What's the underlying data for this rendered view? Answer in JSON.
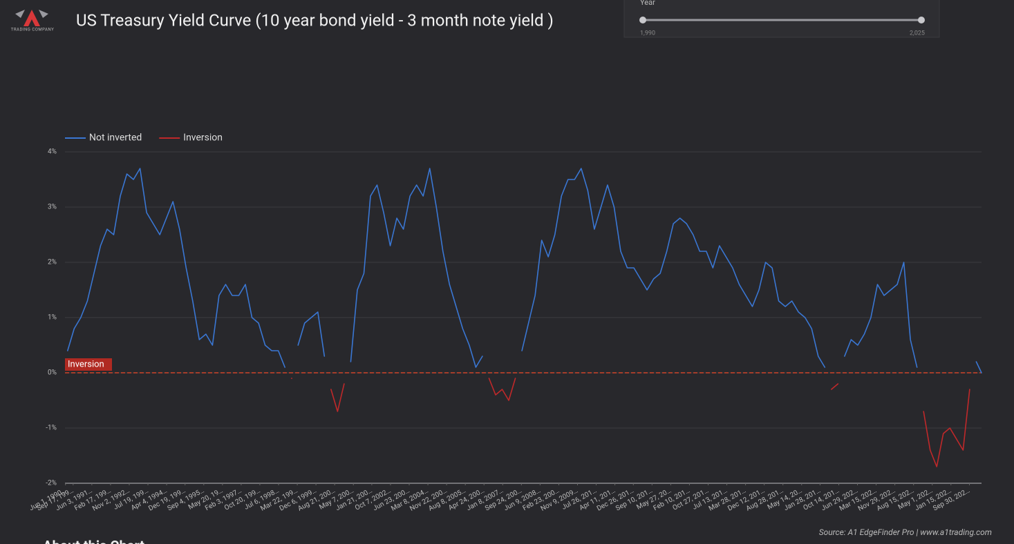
{
  "header": {
    "title": "US Treasury Yield Curve  (10 year bond yield - 3 month note yield )",
    "logo_text": "TRADING COMPANY"
  },
  "controls": {
    "slider": {
      "label": "Year",
      "min_label": "1,990",
      "max_label": "2,025"
    }
  },
  "chart_data": {
    "type": "line",
    "x": [
      1990.5,
      1990.75,
      1991,
      1991.25,
      1991.5,
      1991.75,
      1992,
      1992.25,
      1992.5,
      1992.75,
      1993,
      1993.25,
      1993.5,
      1993.75,
      1994,
      1994.25,
      1994.5,
      1994.75,
      1995,
      1995.25,
      1995.5,
      1995.75,
      1996,
      1996.25,
      1996.5,
      1996.75,
      1997,
      1997.25,
      1997.5,
      1997.75,
      1998,
      1998.25,
      1998.5,
      1998.75,
      1999,
      1999.25,
      1999.5,
      1999.75,
      2000,
      2000.25,
      2000.5,
      2000.75,
      2001,
      2001.25,
      2001.5,
      2001.75,
      2002,
      2002.25,
      2002.5,
      2002.75,
      2003,
      2003.25,
      2003.5,
      2003.75,
      2004,
      2004.25,
      2004.5,
      2004.75,
      2005,
      2005.25,
      2005.5,
      2005.75,
      2006,
      2006.25,
      2006.5,
      2006.75,
      2007,
      2007.25,
      2007.5,
      2007.75,
      2008,
      2008.25,
      2008.5,
      2008.75,
      2009,
      2009.25,
      2009.5,
      2009.75,
      2010,
      2010.25,
      2010.5,
      2010.75,
      2011,
      2011.25,
      2011.5,
      2011.75,
      2012,
      2012.25,
      2012.5,
      2012.75,
      2013,
      2013.25,
      2013.5,
      2013.75,
      2014,
      2014.25,
      2014.5,
      2014.75,
      2015,
      2015.25,
      2015.5,
      2015.75,
      2016,
      2016.25,
      2016.5,
      2016.75,
      2017,
      2017.25,
      2017.5,
      2017.75,
      2018,
      2018.25,
      2018.5,
      2018.75,
      2019,
      2019.25,
      2019.5,
      2019.75,
      2020,
      2020.25,
      2020.5,
      2020.75,
      2021,
      2021.25,
      2021.5,
      2021.75,
      2022,
      2022.25,
      2022.5,
      2022.75,
      2023,
      2023.25,
      2023.5,
      2023.75,
      2024,
      2024.25,
      2024.5,
      2024.75,
      2025,
      2025.2
    ],
    "series": [
      {
        "name": "Not inverted",
        "color": "#3a77d4",
        "values": [
          0.4,
          0.8,
          1.0,
          1.3,
          1.8,
          2.3,
          2.6,
          2.5,
          3.2,
          3.6,
          3.5,
          3.7,
          2.9,
          2.7,
          2.5,
          2.8,
          3.1,
          2.6,
          1.9,
          1.3,
          0.6,
          0.7,
          0.5,
          1.4,
          1.6,
          1.4,
          1.4,
          1.6,
          1.0,
          0.9,
          0.5,
          0.4,
          0.4,
          0.1,
          null,
          0.5,
          0.9,
          1.0,
          1.1,
          0.3,
          null,
          null,
          null,
          0.2,
          1.5,
          1.8,
          3.2,
          3.4,
          2.9,
          2.3,
          2.8,
          2.6,
          3.2,
          3.4,
          3.2,
          3.7,
          3.0,
          2.2,
          1.6,
          1.2,
          0.8,
          0.5,
          0.1,
          0.3,
          null,
          null,
          null,
          null,
          null,
          0.4,
          0.9,
          1.4,
          2.4,
          2.1,
          2.5,
          3.2,
          3.5,
          3.5,
          3.7,
          3.3,
          2.6,
          3.0,
          3.4,
          3.0,
          2.2,
          1.9,
          1.9,
          1.7,
          1.5,
          1.7,
          1.8,
          2.2,
          2.7,
          2.8,
          2.7,
          2.5,
          2.2,
          2.2,
          1.9,
          2.3,
          2.1,
          1.9,
          1.6,
          1.4,
          1.2,
          1.5,
          2.0,
          1.9,
          1.3,
          1.2,
          1.3,
          1.1,
          1.0,
          0.8,
          0.3,
          0.1,
          null,
          null,
          0.3,
          0.6,
          0.5,
          0.7,
          1.0,
          1.6,
          1.4,
          1.5,
          1.6,
          2.0,
          0.6,
          0.1,
          null,
          null,
          null,
          null,
          null,
          null,
          null,
          null,
          0.2,
          0
        ]
      },
      {
        "name": "Inversion",
        "color": "#c0282a",
        "values": [
          null,
          null,
          null,
          null,
          null,
          null,
          null,
          null,
          null,
          null,
          null,
          null,
          null,
          null,
          null,
          null,
          null,
          null,
          null,
          null,
          null,
          null,
          null,
          null,
          null,
          null,
          null,
          null,
          null,
          null,
          null,
          null,
          null,
          null,
          -0.1,
          null,
          null,
          null,
          null,
          null,
          -0.3,
          -0.7,
          -0.2,
          null,
          null,
          null,
          null,
          null,
          null,
          null,
          null,
          null,
          null,
          null,
          null,
          null,
          null,
          null,
          null,
          null,
          null,
          null,
          null,
          null,
          -0.1,
          -0.4,
          -0.3,
          -0.5,
          -0.1,
          null,
          null,
          null,
          null,
          null,
          null,
          null,
          null,
          null,
          null,
          null,
          null,
          null,
          null,
          null,
          null,
          null,
          null,
          null,
          null,
          null,
          null,
          null,
          null,
          null,
          null,
          null,
          null,
          null,
          null,
          null,
          null,
          null,
          null,
          null,
          null,
          null,
          null,
          null,
          null,
          null,
          null,
          null,
          null,
          null,
          null,
          null,
          -0.3,
          -0.2,
          null,
          null,
          null,
          null,
          null,
          null,
          null,
          null,
          null,
          null,
          null,
          null,
          -0.7,
          -1.4,
          -1.7,
          -1.1,
          -1.0,
          -1.2,
          -1.4,
          -0.3,
          null,
          null
        ]
      }
    ],
    "xlim": [
      1990.4,
      2025.2
    ],
    "ylim": [
      -2,
      4
    ],
    "yticks": [
      {
        "value": -2,
        "label": "-2%"
      },
      {
        "value": -1,
        "label": "-1%"
      },
      {
        "value": 0,
        "label": "0%"
      },
      {
        "value": 1,
        "label": "1%"
      },
      {
        "value": 2,
        "label": "2%"
      },
      {
        "value": 3,
        "label": "3%"
      },
      {
        "value": 4,
        "label": "4%"
      }
    ],
    "xticks": [
      {
        "value": 1990.42,
        "label": "Jun 1, 1990…"
      },
      {
        "value": 1990.71,
        "label": "Sep 17, 199…"
      },
      {
        "value": 1991.42,
        "label": "Jun 3, 1991…"
      },
      {
        "value": 1992.13,
        "label": "Feb 17, 199…"
      },
      {
        "value": 1992.84,
        "label": "Nov 2, 1992…"
      },
      {
        "value": 1993.55,
        "label": "Jul 19, 199…"
      },
      {
        "value": 1994.26,
        "label": "Apr 4, 1994…"
      },
      {
        "value": 1994.96,
        "label": "Dec 19, 199…"
      },
      {
        "value": 1995.67,
        "label": "Sep 4, 1995…"
      },
      {
        "value": 1996.38,
        "label": "May 20, 19…"
      },
      {
        "value": 1997.09,
        "label": "Feb 3, 1997…"
      },
      {
        "value": 1997.8,
        "label": "Oct 20, 199…"
      },
      {
        "value": 1998.51,
        "label": "Jul 6, 1998…"
      },
      {
        "value": 1999.22,
        "label": "Mar 22, 199…"
      },
      {
        "value": 1999.93,
        "label": "Dec 6, 1999…"
      },
      {
        "value": 2000.64,
        "label": "Aug 21, 200…"
      },
      {
        "value": 2001.35,
        "label": "May 7, 200…"
      },
      {
        "value": 2002.05,
        "label": "Jan 21, 200…"
      },
      {
        "value": 2002.76,
        "label": "Oct 7, 2002…"
      },
      {
        "value": 2003.47,
        "label": "Jun 23, 200…"
      },
      {
        "value": 2004.18,
        "label": "Mar 8, 2004…"
      },
      {
        "value": 2004.89,
        "label": "Nov 22, 200…"
      },
      {
        "value": 2005.6,
        "label": "Aug 8, 2005…"
      },
      {
        "value": 2006.31,
        "label": "Apr 24, 200…"
      },
      {
        "value": 2007.02,
        "label": "Jan 8, 2007…"
      },
      {
        "value": 2007.73,
        "label": "Sep 24, 200…"
      },
      {
        "value": 2008.44,
        "label": "Jun 9, 2008…"
      },
      {
        "value": 2009.15,
        "label": "Feb 23, 200…"
      },
      {
        "value": 2009.86,
        "label": "Nov 9, 2009…"
      },
      {
        "value": 2010.57,
        "label": "Jul 26, 201…"
      },
      {
        "value": 2011.28,
        "label": "Apr 11, 201…"
      },
      {
        "value": 2011.98,
        "label": "Dec 26, 201…"
      },
      {
        "value": 2012.69,
        "label": "Sep 10, 201…"
      },
      {
        "value": 2013.4,
        "label": "May 27, 20…"
      },
      {
        "value": 2014.11,
        "label": "Feb 10, 201…"
      },
      {
        "value": 2014.82,
        "label": "Oct 27, 201…"
      },
      {
        "value": 2015.53,
        "label": "Jul 13, 201…"
      },
      {
        "value": 2016.24,
        "label": "Mar 28, 201…"
      },
      {
        "value": 2016.95,
        "label": "Dec 12, 201…"
      },
      {
        "value": 2017.66,
        "label": "Aug 28, 201…"
      },
      {
        "value": 2018.37,
        "label": "May 14, 20…"
      },
      {
        "value": 2019.07,
        "label": "Jan 28, 201…"
      },
      {
        "value": 2019.78,
        "label": "Oct 14, 201…"
      },
      {
        "value": 2020.49,
        "label": "Jun 29, 202…"
      },
      {
        "value": 2021.2,
        "label": "Mar 15, 202…"
      },
      {
        "value": 2021.91,
        "label": "Nov 29, 202…"
      },
      {
        "value": 2022.62,
        "label": "Aug 15, 202…"
      },
      {
        "value": 2023.33,
        "label": "May 1, 202…"
      },
      {
        "value": 2024.04,
        "label": "Jan 15, 202…"
      },
      {
        "value": 2024.74,
        "label": "Sep 30, 202…"
      }
    ],
    "grid": true,
    "legend": "top-left",
    "threshold": {
      "value": 0,
      "label": "Inversion",
      "color": "#d0442a"
    },
    "source": "Source: A1 EdgeFinder Pro | www.a1trading.com"
  },
  "footer": {
    "heading": "About this Chart"
  }
}
